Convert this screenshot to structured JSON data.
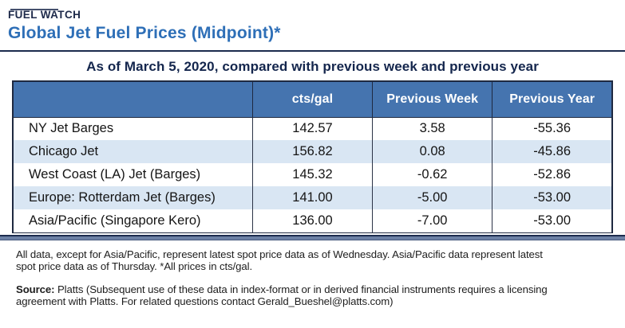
{
  "kicker": "FUEL WATCH",
  "title": "Global Jet Fuel Prices (Midpoint)*",
  "subtitle": "As of March 5, 2020, compared with previous week and previous year",
  "table": {
    "headers": [
      "",
      "cts/gal",
      "Previous Week",
      "Previous Year"
    ],
    "rows": [
      {
        "label": "NY Jet Barges",
        "cts_gal": "142.57",
        "prev_week": "3.58",
        "prev_year": "-55.36"
      },
      {
        "label": "Chicago Jet",
        "cts_gal": "156.82",
        "prev_week": "0.08",
        "prev_year": "-45.86"
      },
      {
        "label": "West Coast (LA) Jet (Barges)",
        "cts_gal": "145.32",
        "prev_week": "-0.62",
        "prev_year": "-52.86"
      },
      {
        "label": "Europe: Rotterdam Jet (Barges)",
        "cts_gal": "141.00",
        "prev_week": "-5.00",
        "prev_year": "-53.00"
      },
      {
        "label": "Asia/Pacific (Singapore Kero)",
        "cts_gal": "136.00",
        "prev_week": "-7.00",
        "prev_year": "-53.00"
      }
    ]
  },
  "footnote": {
    "line1": "All data, except for Asia/Pacific, represent latest spot price data as of Wednesday. Asia/Pacific data represent latest",
    "line2": "spot price data as of Thursday. *All prices in cts/gal."
  },
  "source": {
    "label": "Source:",
    "line1": " Platts (Subsequent use of these data in index-format or in derived financial instruments requires a licensing",
    "line2": "agreement with Platts. For related questions contact Gerald_Bueshel@platts.com)"
  },
  "colors": {
    "navy_text": "#14264d",
    "title_blue": "#2e6fb7",
    "header_blue": "#4574af",
    "alt_row_blue": "#d9e6f3",
    "bottom_bar_slate": "#6c80a4",
    "border_dark": "#1e2940"
  },
  "chart_data": {
    "type": "table",
    "title": "Global Jet Fuel Prices (Midpoint)*",
    "subtitle": "As of March 5, 2020, compared with previous week and previous year",
    "columns": [
      "",
      "cts/gal",
      "Previous Week",
      "Previous Year"
    ],
    "rows": [
      [
        "NY Jet Barges",
        142.57,
        3.58,
        -55.36
      ],
      [
        "Chicago Jet",
        156.82,
        0.08,
        -45.86
      ],
      [
        "West Coast (LA) Jet (Barges)",
        145.32,
        -0.62,
        -52.86
      ],
      [
        "Europe: Rotterdam Jet (Barges)",
        141.0,
        -5.0,
        -53.0
      ],
      [
        "Asia/Pacific (Singapore Kero)",
        136.0,
        -7.0,
        -53.0
      ]
    ],
    "units": "cts/gal",
    "layout": {
      "alternating_row_shading": true,
      "header_background": "#4574af",
      "grid": "vertical-only"
    }
  }
}
